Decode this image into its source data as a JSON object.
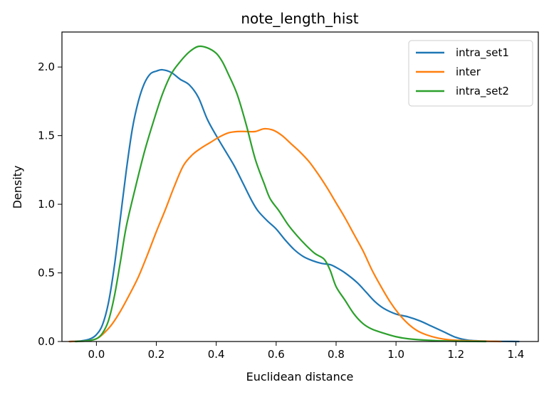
{
  "chart_data": {
    "type": "line",
    "title": "note_length_hist",
    "xlabel": "Euclidean distance",
    "ylabel": "Density",
    "xlim": [
      -0.115,
      1.475
    ],
    "ylim": [
      0,
      2.255
    ],
    "xticks": [
      0.0,
      0.2,
      0.4,
      0.6,
      0.8,
      1.0,
      1.2,
      1.4
    ],
    "xtick_labels": [
      "0.0",
      "0.2",
      "0.4",
      "0.6",
      "0.8",
      "1.0",
      "1.2",
      "1.4"
    ],
    "yticks": [
      0.0,
      0.5,
      1.0,
      1.5,
      2.0
    ],
    "ytick_labels": [
      "0.0",
      "0.5",
      "1.0",
      "1.5",
      "2.0"
    ],
    "grid": false,
    "legend_position": "top-right",
    "series": [
      {
        "name": "intra_set1",
        "color": "#1f77b4",
        "points": [
          [
            -0.09,
            0.0
          ],
          [
            -0.05,
            0.005
          ],
          [
            -0.02,
            0.02
          ],
          [
            0.0,
            0.05
          ],
          [
            0.02,
            0.12
          ],
          [
            0.04,
            0.28
          ],
          [
            0.06,
            0.55
          ],
          [
            0.08,
            0.9
          ],
          [
            0.1,
            1.25
          ],
          [
            0.12,
            1.55
          ],
          [
            0.14,
            1.75
          ],
          [
            0.16,
            1.88
          ],
          [
            0.18,
            1.95
          ],
          [
            0.2,
            1.97
          ],
          [
            0.22,
            1.98
          ],
          [
            0.25,
            1.96
          ],
          [
            0.28,
            1.91
          ],
          [
            0.31,
            1.87
          ],
          [
            0.34,
            1.78
          ],
          [
            0.37,
            1.62
          ],
          [
            0.4,
            1.5
          ],
          [
            0.43,
            1.39
          ],
          [
            0.46,
            1.28
          ],
          [
            0.49,
            1.15
          ],
          [
            0.52,
            1.02
          ],
          [
            0.54,
            0.95
          ],
          [
            0.57,
            0.88
          ],
          [
            0.6,
            0.82
          ],
          [
            0.63,
            0.74
          ],
          [
            0.66,
            0.67
          ],
          [
            0.69,
            0.62
          ],
          [
            0.72,
            0.59
          ],
          [
            0.75,
            0.57
          ],
          [
            0.78,
            0.56
          ],
          [
            0.8,
            0.54
          ],
          [
            0.83,
            0.5
          ],
          [
            0.87,
            0.43
          ],
          [
            0.9,
            0.36
          ],
          [
            0.93,
            0.29
          ],
          [
            0.96,
            0.24
          ],
          [
            1.0,
            0.2
          ],
          [
            1.04,
            0.18
          ],
          [
            1.08,
            0.15
          ],
          [
            1.12,
            0.11
          ],
          [
            1.16,
            0.07
          ],
          [
            1.2,
            0.03
          ],
          [
            1.24,
            0.01
          ],
          [
            1.3,
            0.003
          ],
          [
            1.41,
            0.0
          ]
        ]
      },
      {
        "name": "inter",
        "color": "#ff7f0e",
        "points": [
          [
            -0.09,
            0.0
          ],
          [
            -0.03,
            0.005
          ],
          [
            0.0,
            0.02
          ],
          [
            0.02,
            0.05
          ],
          [
            0.05,
            0.12
          ],
          [
            0.08,
            0.22
          ],
          [
            0.11,
            0.34
          ],
          [
            0.14,
            0.47
          ],
          [
            0.17,
            0.63
          ],
          [
            0.2,
            0.8
          ],
          [
            0.23,
            0.96
          ],
          [
            0.26,
            1.13
          ],
          [
            0.29,
            1.28
          ],
          [
            0.32,
            1.36
          ],
          [
            0.35,
            1.41
          ],
          [
            0.38,
            1.45
          ],
          [
            0.41,
            1.49
          ],
          [
            0.44,
            1.52
          ],
          [
            0.47,
            1.53
          ],
          [
            0.5,
            1.53
          ],
          [
            0.53,
            1.53
          ],
          [
            0.56,
            1.55
          ],
          [
            0.59,
            1.54
          ],
          [
            0.62,
            1.5
          ],
          [
            0.65,
            1.44
          ],
          [
            0.68,
            1.38
          ],
          [
            0.71,
            1.31
          ],
          [
            0.74,
            1.22
          ],
          [
            0.77,
            1.12
          ],
          [
            0.8,
            1.01
          ],
          [
            0.83,
            0.9
          ],
          [
            0.86,
            0.78
          ],
          [
            0.89,
            0.66
          ],
          [
            0.92,
            0.52
          ],
          [
            0.95,
            0.4
          ],
          [
            0.98,
            0.29
          ],
          [
            1.01,
            0.2
          ],
          [
            1.04,
            0.13
          ],
          [
            1.07,
            0.08
          ],
          [
            1.1,
            0.05
          ],
          [
            1.14,
            0.025
          ],
          [
            1.18,
            0.012
          ],
          [
            1.25,
            0.005
          ],
          [
            1.35,
            0.0
          ]
        ]
      },
      {
        "name": "intra_set2",
        "color": "#2ca02c",
        "points": [
          [
            -0.07,
            0.0
          ],
          [
            -0.03,
            0.005
          ],
          [
            0.0,
            0.02
          ],
          [
            0.02,
            0.06
          ],
          [
            0.04,
            0.15
          ],
          [
            0.06,
            0.33
          ],
          [
            0.08,
            0.58
          ],
          [
            0.1,
            0.84
          ],
          [
            0.13,
            1.12
          ],
          [
            0.16,
            1.38
          ],
          [
            0.19,
            1.6
          ],
          [
            0.22,
            1.8
          ],
          [
            0.25,
            1.95
          ],
          [
            0.28,
            2.04
          ],
          [
            0.31,
            2.11
          ],
          [
            0.34,
            2.15
          ],
          [
            0.37,
            2.14
          ],
          [
            0.4,
            2.1
          ],
          [
            0.42,
            2.04
          ],
          [
            0.44,
            1.95
          ],
          [
            0.47,
            1.8
          ],
          [
            0.5,
            1.58
          ],
          [
            0.53,
            1.33
          ],
          [
            0.56,
            1.15
          ],
          [
            0.58,
            1.04
          ],
          [
            0.61,
            0.95
          ],
          [
            0.64,
            0.85
          ],
          [
            0.67,
            0.77
          ],
          [
            0.7,
            0.7
          ],
          [
            0.73,
            0.64
          ],
          [
            0.76,
            0.6
          ],
          [
            0.78,
            0.52
          ],
          [
            0.8,
            0.4
          ],
          [
            0.83,
            0.3
          ],
          [
            0.86,
            0.2
          ],
          [
            0.89,
            0.13
          ],
          [
            0.92,
            0.09
          ],
          [
            0.96,
            0.06
          ],
          [
            1.0,
            0.035
          ],
          [
            1.04,
            0.02
          ],
          [
            1.1,
            0.01
          ],
          [
            1.18,
            0.003
          ],
          [
            1.3,
            0.0
          ]
        ]
      }
    ]
  }
}
